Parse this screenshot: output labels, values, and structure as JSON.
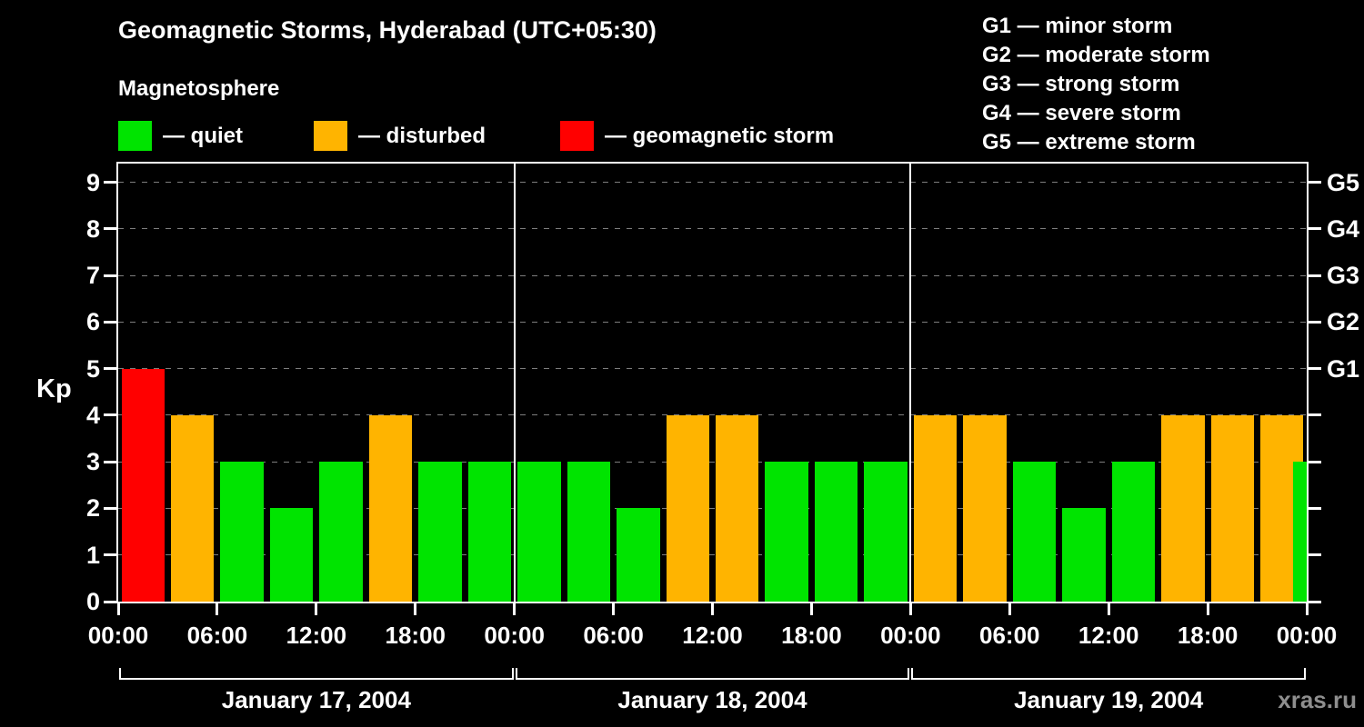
{
  "header": {
    "title": "Geomagnetic Storms, Hyderabad (UTC+05:30)"
  },
  "legend": {
    "title": "Magnetosphere",
    "items": [
      {
        "key": "quiet",
        "label": "— quiet",
        "color": "#00e400"
      },
      {
        "key": "disturbed",
        "label": "— disturbed",
        "color": "#ffb400"
      },
      {
        "key": "storm",
        "label": "— geomagnetic storm",
        "color": "#ff0000"
      }
    ]
  },
  "g_scale": {
    "items": [
      "G1 — minor storm",
      "G2 — moderate storm",
      "G3 — strong storm",
      "G4 — severe storm",
      "G5 — extreme storm"
    ]
  },
  "watermark": "xras.ru",
  "chart_data": {
    "type": "bar",
    "title": "Geomagnetic Storms, Hyderabad (UTC+05:30)",
    "ylabel": "Kp",
    "xlabel": "",
    "ylim": [
      0,
      9.4
    ],
    "yticks": [
      0,
      1,
      2,
      3,
      4,
      5,
      6,
      7,
      8,
      9
    ],
    "grid": "dashed-horizontal",
    "legend_position": "top-left",
    "right_axis": [
      {
        "label": "G5",
        "kp": 9
      },
      {
        "label": "G4",
        "kp": 8
      },
      {
        "label": "G3",
        "kp": 7
      },
      {
        "label": "G2",
        "kp": 6
      },
      {
        "label": "G1",
        "kp": 5
      }
    ],
    "x_tick_hours": [
      "00:00",
      "06:00",
      "12:00",
      "18:00"
    ],
    "x_final_tick": "00:00",
    "interval_hours": 3,
    "days": [
      {
        "date": "January 17, 2004",
        "kp": [
          5,
          4,
          3,
          2,
          3,
          4,
          3,
          3
        ]
      },
      {
        "date": "January 18, 2004",
        "kp": [
          3,
          3,
          2,
          4,
          4,
          3,
          3,
          3
        ]
      },
      {
        "date": "January 19, 2004",
        "kp": [
          4,
          4,
          3,
          2,
          3,
          4,
          4,
          4
        ]
      }
    ],
    "next_partial_kp": 3,
    "color_rules": {
      "disturbed_min": 4,
      "storm_min": 5
    },
    "colors": {
      "quiet": "#00e400",
      "disturbed": "#ffb400",
      "storm": "#ff0000"
    }
  }
}
